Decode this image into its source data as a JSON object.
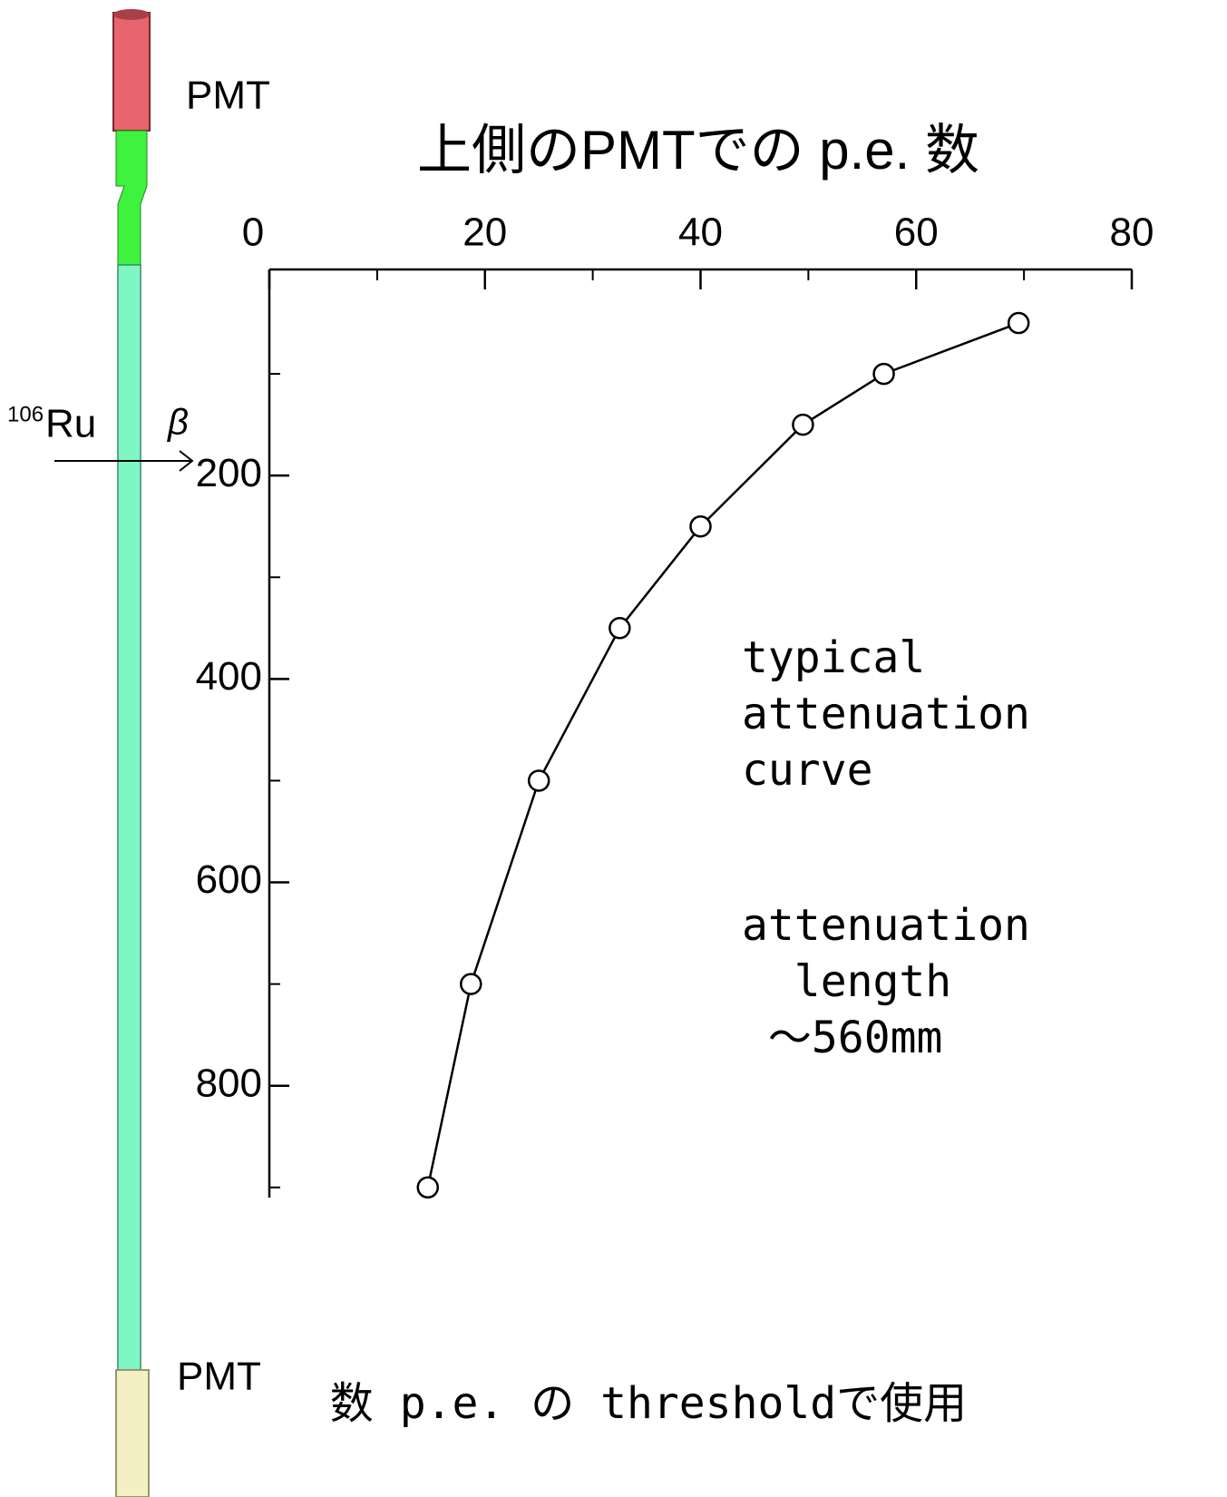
{
  "chart_data": {
    "type": "line",
    "title": "上側のPMTでの p.e. 数",
    "series": [
      {
        "color": "#000000",
        "x": [
          69.5,
          57,
          49.5,
          40,
          32.5,
          25,
          18.7,
          14.7
        ],
        "values": [
          50,
          100,
          150,
          250,
          350,
          500,
          700,
          900
        ]
      }
    ],
    "xlim": [
      0,
      80
    ],
    "xticks": [
      0,
      20,
      40,
      60,
      80
    ],
    "xminorticks": [
      10,
      30,
      50,
      70
    ],
    "ylim": [
      0,
      910
    ],
    "yticks": [
      200,
      400,
      600,
      800
    ],
    "yminorticks": [
      100,
      300,
      500,
      700,
      900
    ],
    "y_inverted": true,
    "x_axis_position": "top",
    "annotations": [
      {
        "lines": [
          "typical",
          "attenuation",
          "curve"
        ],
        "color": "#f7931e"
      },
      {
        "lines": [
          "attenuation",
          "  length",
          " ～560mm"
        ],
        "color": "#000000"
      }
    ],
    "footnote": {
      "text": "数 p.e. の thresholdで使用",
      "color": "#ff0000"
    }
  },
  "diagram": {
    "pmt_top": "PMT",
    "pmt_bottom": "PMT",
    "isotope_mass": "106",
    "isotope_symbol": "Ru",
    "particle": "β"
  }
}
